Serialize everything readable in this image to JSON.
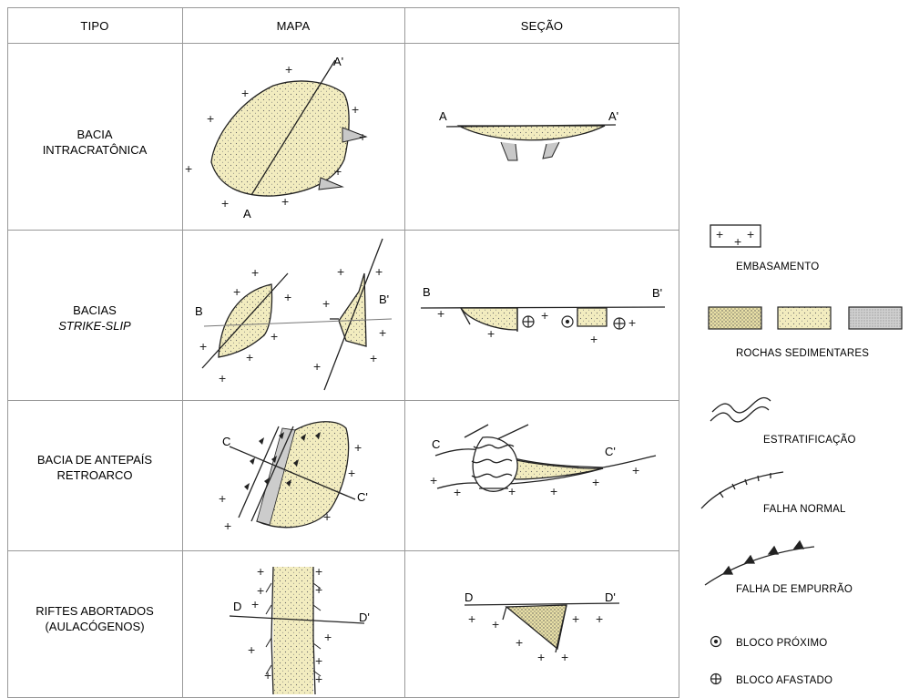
{
  "headers": {
    "tipo": "TIPO",
    "mapa": "MAPA",
    "secao": "SEÇÃO"
  },
  "rows": [
    {
      "tipo_line1": "BACIA",
      "tipo_line2": "INTRACRATÔNICA",
      "map_start": "A",
      "map_end": "A'",
      "sec_start": "A",
      "sec_end": "A'"
    },
    {
      "tipo_line1": "BACIAS",
      "tipo_line2": "STRIKE-SLIP",
      "map_start": "B",
      "map_end": "B'",
      "sec_start": "B",
      "sec_end": "B'"
    },
    {
      "tipo_line1": "BACIA DE ANTEPAÍS",
      "tipo_line2": "RETROARCO",
      "map_start": "C",
      "map_end": "C'",
      "sec_start": "C",
      "sec_end": "C'"
    },
    {
      "tipo_line1": "RIFTES ABORTADOS",
      "tipo_line2": "(AULACÓGENOS)",
      "map_start": "D",
      "map_end": "D'",
      "sec_start": "D",
      "sec_end": "D'"
    }
  ],
  "legend": {
    "embasamento": "EMBASAMENTO",
    "rochas": "ROCHAS SEDIMENTARES",
    "estratificacao": "ESTRATIFICAÇÃO",
    "falha_normal": "FALHA NORMAL",
    "falha_empurrao": "FALHA DE EMPURRÃO",
    "bloco_proximo": "BLOCO PRÓXIMO",
    "bloco_afastado": "BLOCO AFASTADO"
  },
  "colors": {
    "sediment": "#f2ecbf",
    "sediment_dark": "#e8dfa6",
    "line": "#222222",
    "grid": "#999999",
    "grey": "#c8c8c8"
  }
}
